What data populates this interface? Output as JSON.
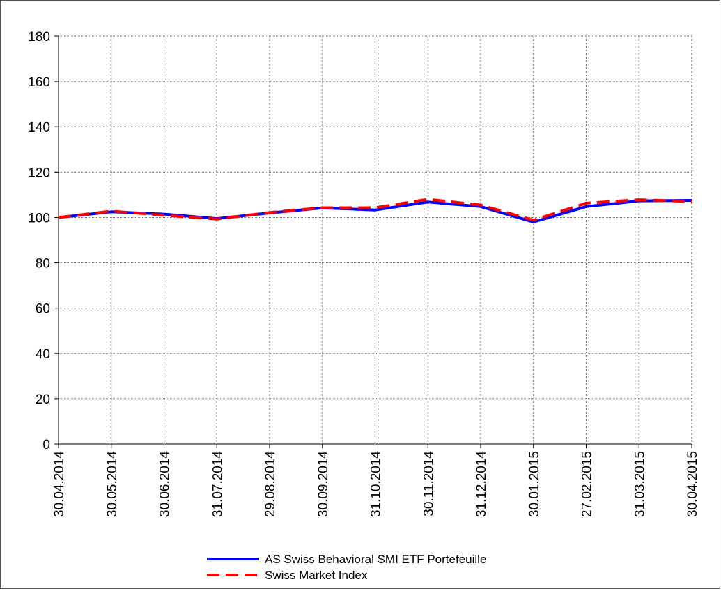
{
  "chart_data": {
    "type": "line",
    "categories": [
      "30.04.2014",
      "30.05.2014",
      "30.06.2014",
      "31.07.2014",
      "29.08.2014",
      "30.09.2014",
      "31.10.2014",
      "30.11.2014",
      "31.12.2014",
      "30.01.2015",
      "27.02.2015",
      "31.03.2015",
      "30.04.2015"
    ],
    "series": [
      {
        "name": "AS Swiss Behavioral SMI ETF Portefeuille",
        "color": "#0000ff",
        "dash": false,
        "values": [
          100,
          102.5,
          101.5,
          99.5,
          102,
          104.2,
          103.3,
          106.8,
          104.8,
          98,
          104.8,
          107.3,
          107.5
        ]
      },
      {
        "name": "Swiss Market Index",
        "color": "#ff0000",
        "dash": true,
        "values": [
          100,
          102.8,
          101,
          99.3,
          102.2,
          104.3,
          104.3,
          108,
          105.5,
          98.8,
          106.3,
          107.8,
          107
        ]
      }
    ],
    "ylim": [
      0,
      180
    ],
    "yticks": [
      0,
      20,
      40,
      60,
      80,
      100,
      120,
      140,
      160,
      180
    ],
    "grid": true
  }
}
